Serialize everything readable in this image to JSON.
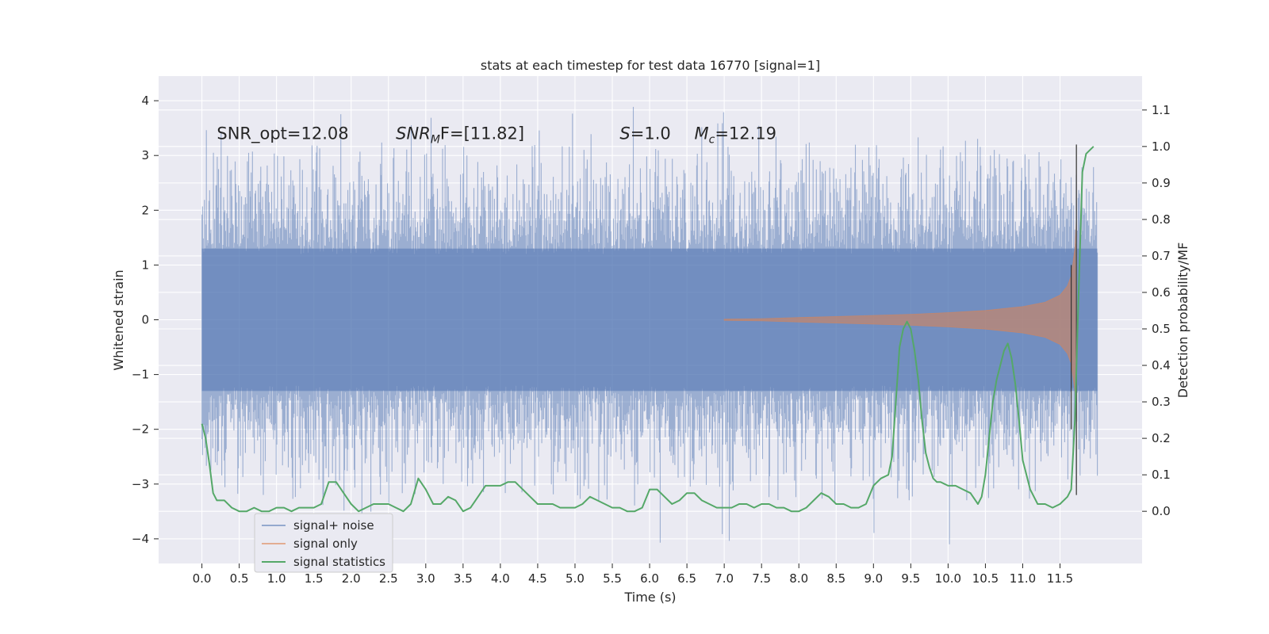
{
  "chart_data": {
    "type": "line",
    "title": "stats at each timestep for test data 16770 [signal=1]",
    "xlabel": "Time (s)",
    "ylabel": "Whitened strain",
    "y2label": "Detection probability/MF",
    "xlim": [
      -0.58,
      12.6
    ],
    "ylim": [
      -4.45,
      4.45
    ],
    "y2lim": [
      -0.143,
      1.193
    ],
    "x_ticks": [
      "0.0",
      "0.5",
      "1.0",
      "1.5",
      "2.0",
      "2.5",
      "3.0",
      "3.5",
      "4.0",
      "4.5",
      "5.0",
      "5.5",
      "6.0",
      "6.5",
      "7.0",
      "7.5",
      "8.0",
      "8.5",
      "9.0",
      "9.5",
      "10.0",
      "10.5",
      "11.0",
      "11.5"
    ],
    "y_ticks": [
      "4",
      "3",
      "2",
      "1",
      "0",
      "−1",
      "−2",
      "−3",
      "−4"
    ],
    "y2_ticks": [
      "1.1",
      "1.0",
      "0.9",
      "0.8",
      "0.7",
      "0.6",
      "0.5",
      "0.4",
      "0.3",
      "0.2",
      "0.1",
      "0.0"
    ],
    "grid": true,
    "legend_position": "bottom-left",
    "annotations": [
      {
        "text": "SNR_opt=12.08",
        "x": 0.2,
        "y": 3.3
      },
      {
        "pre": "SNR",
        "sub": "M",
        "post": "F=[11.82]",
        "italic_prefix": true,
        "x": 2.6,
        "y": 3.3
      },
      {
        "pre": "S",
        "sub": "",
        "post": "=1.0",
        "italic_prefix": true,
        "x": 5.6,
        "y": 3.3
      },
      {
        "pre": "M",
        "sub": "c",
        "post": "=12.19",
        "italic_prefix": true,
        "x": 6.6,
        "y": 3.3
      }
    ],
    "series": [
      {
        "name": "signal+ noise",
        "color": "#4c72b0",
        "axis": "left",
        "style": "noise",
        "x_range": [
          0.0,
          12.0
        ],
        "band_upper": [
          1.3,
          1.3,
          1.35,
          1.3,
          1.3,
          1.3,
          1.3,
          1.3,
          1.3,
          1.3,
          1.3,
          1.3,
          1.3,
          1.3,
          1.3,
          1.3,
          1.3,
          1.3,
          1.3,
          1.3,
          1.3,
          1.3,
          1.3,
          1.3,
          1.3
        ],
        "outer_upper_typical": 2.0,
        "outer_lower_typical": -2.0,
        "peak_max": 4.1,
        "peak_min": -4.1
      },
      {
        "name": "signal only",
        "color": "#dd8452",
        "axis": "left",
        "style": "chirp",
        "x": [
          7.0,
          7.5,
          8.0,
          8.5,
          9.0,
          9.5,
          10.0,
          10.5,
          11.0,
          11.3,
          11.5,
          11.6,
          11.65,
          11.7,
          11.72
        ],
        "envelope": [
          0.01,
          0.02,
          0.04,
          0.06,
          0.08,
          0.1,
          0.13,
          0.17,
          0.24,
          0.32,
          0.45,
          0.62,
          0.8,
          1.3,
          1.9
        ]
      },
      {
        "name": "signal statistics",
        "color": "#55a868",
        "axis": "right",
        "x": [
          0.0,
          0.05,
          0.1,
          0.15,
          0.2,
          0.3,
          0.4,
          0.5,
          0.6,
          0.7,
          0.8,
          0.9,
          1.0,
          1.1,
          1.2,
          1.3,
          1.4,
          1.5,
          1.6,
          1.7,
          1.8,
          1.9,
          2.0,
          2.1,
          2.2,
          2.3,
          2.4,
          2.5,
          2.6,
          2.7,
          2.8,
          2.9,
          3.0,
          3.1,
          3.2,
          3.3,
          3.4,
          3.5,
          3.6,
          3.7,
          3.8,
          3.9,
          4.0,
          4.1,
          4.2,
          4.3,
          4.4,
          4.5,
          4.6,
          4.7,
          4.8,
          4.9,
          5.0,
          5.1,
          5.2,
          5.3,
          5.4,
          5.5,
          5.6,
          5.7,
          5.8,
          5.9,
          6.0,
          6.1,
          6.2,
          6.3,
          6.4,
          6.5,
          6.6,
          6.7,
          6.8,
          6.9,
          7.0,
          7.1,
          7.2,
          7.3,
          7.4,
          7.5,
          7.6,
          7.7,
          7.8,
          7.9,
          8.0,
          8.1,
          8.2,
          8.3,
          8.4,
          8.5,
          8.6,
          8.7,
          8.8,
          8.9,
          9.0,
          9.1,
          9.2,
          9.25,
          9.3,
          9.35,
          9.4,
          9.45,
          9.5,
          9.55,
          9.6,
          9.65,
          9.7,
          9.75,
          9.8,
          9.85,
          9.9,
          10.0,
          10.1,
          10.2,
          10.3,
          10.4,
          10.45,
          10.5,
          10.55,
          10.6,
          10.65,
          10.7,
          10.75,
          10.8,
          10.85,
          10.9,
          10.95,
          11.0,
          11.05,
          11.1,
          11.2,
          11.3,
          11.4,
          11.5,
          11.6,
          11.65,
          11.7,
          11.75,
          11.8,
          11.85,
          11.9,
          11.95
        ],
        "values": [
          0.24,
          0.2,
          0.13,
          0.05,
          0.03,
          0.03,
          0.01,
          0.0,
          0.0,
          0.01,
          0.0,
          0.0,
          0.01,
          0.01,
          0.0,
          0.01,
          0.01,
          0.01,
          0.02,
          0.08,
          0.08,
          0.05,
          0.02,
          0.0,
          0.01,
          0.02,
          0.02,
          0.02,
          0.01,
          0.0,
          0.02,
          0.09,
          0.06,
          0.02,
          0.02,
          0.04,
          0.03,
          0.0,
          0.01,
          0.04,
          0.07,
          0.07,
          0.07,
          0.08,
          0.08,
          0.06,
          0.04,
          0.02,
          0.02,
          0.02,
          0.01,
          0.01,
          0.01,
          0.02,
          0.04,
          0.03,
          0.02,
          0.01,
          0.01,
          0.0,
          0.0,
          0.01,
          0.06,
          0.06,
          0.04,
          0.02,
          0.03,
          0.05,
          0.05,
          0.03,
          0.02,
          0.01,
          0.01,
          0.01,
          0.02,
          0.02,
          0.01,
          0.02,
          0.02,
          0.01,
          0.01,
          0.0,
          0.0,
          0.01,
          0.03,
          0.05,
          0.04,
          0.02,
          0.02,
          0.01,
          0.01,
          0.02,
          0.07,
          0.09,
          0.1,
          0.15,
          0.3,
          0.45,
          0.5,
          0.52,
          0.5,
          0.44,
          0.36,
          0.25,
          0.16,
          0.12,
          0.09,
          0.08,
          0.08,
          0.07,
          0.07,
          0.06,
          0.05,
          0.02,
          0.04,
          0.1,
          0.2,
          0.3,
          0.36,
          0.4,
          0.44,
          0.46,
          0.42,
          0.35,
          0.25,
          0.14,
          0.1,
          0.06,
          0.02,
          0.02,
          0.01,
          0.02,
          0.04,
          0.06,
          0.25,
          0.6,
          0.93,
          0.98,
          0.99,
          1.0
        ]
      }
    ]
  }
}
